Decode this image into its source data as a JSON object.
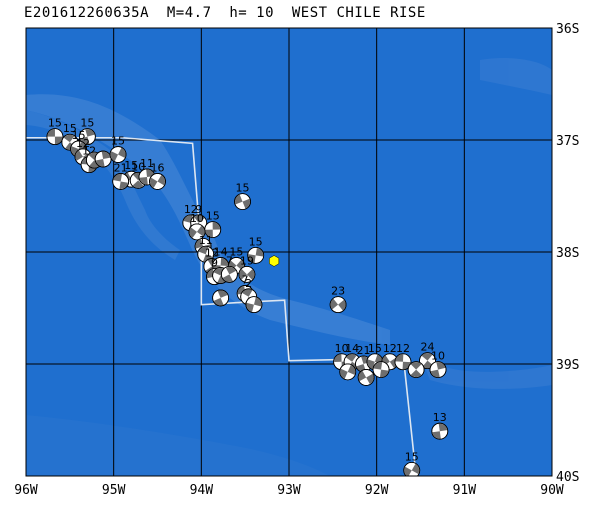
{
  "title": "E201612260635A  M=4.7  h= 10  WEST CHILE RISE",
  "map": {
    "lon_min": -96,
    "lon_max": -90,
    "lat_top": -36,
    "lat_bottom": -40,
    "ocean_color": "#1f6fcf",
    "grid_color": "#000000",
    "ridge_color": "#dce6f2",
    "lon_labels": [
      "96W",
      "95W",
      "94W",
      "93W",
      "92W",
      "91W",
      "90W"
    ],
    "lat_labels": [
      "36S",
      "37S",
      "38S",
      "39S",
      "40S"
    ]
  },
  "ridge": [
    [
      -96.0,
      -36.98
    ],
    [
      -94.9,
      -36.98
    ],
    [
      -94.1,
      -37.03
    ],
    [
      -94.0,
      -38.0
    ],
    [
      -94.0,
      -38.47
    ],
    [
      -93.55,
      -38.45
    ],
    [
      -93.05,
      -38.43
    ],
    [
      -93.0,
      -38.97
    ],
    [
      -91.8,
      -38.95
    ],
    [
      -91.68,
      -39.05
    ],
    [
      -91.55,
      -40.0
    ]
  ],
  "epicenter": {
    "lon": -93.17,
    "lat": -38.08,
    "color": "#ffff00"
  },
  "events": [
    {
      "lon": -95.67,
      "lat": -36.97,
      "label": "15"
    },
    {
      "lon": -95.5,
      "lat": -37.02,
      "label": "15"
    },
    {
      "lon": -95.3,
      "lat": -36.97,
      "label": "15"
    },
    {
      "lon": -95.4,
      "lat": -37.08,
      "label": "15"
    },
    {
      "lon": -95.35,
      "lat": -37.15,
      "label": "12"
    },
    {
      "lon": -95.28,
      "lat": -37.22,
      "label": "12"
    },
    {
      "lon": -95.22,
      "lat": -37.18,
      "label": ""
    },
    {
      "lon": -95.12,
      "lat": -37.17,
      "label": ""
    },
    {
      "lon": -94.95,
      "lat": -37.13,
      "label": "15"
    },
    {
      "lon": -94.8,
      "lat": -37.35,
      "label": "15"
    },
    {
      "lon": -94.92,
      "lat": -37.37,
      "label": "21"
    },
    {
      "lon": -94.72,
      "lat": -37.36,
      "label": "10"
    },
    {
      "lon": -94.62,
      "lat": -37.33,
      "label": "11"
    },
    {
      "lon": -94.5,
      "lat": -37.37,
      "label": "16"
    },
    {
      "lon": -93.53,
      "lat": -37.55,
      "label": "15"
    },
    {
      "lon": -94.12,
      "lat": -37.74,
      "label": "12"
    },
    {
      "lon": -94.03,
      "lat": -37.74,
      "label": "9"
    },
    {
      "lon": -93.87,
      "lat": -37.8,
      "label": "15"
    },
    {
      "lon": -94.05,
      "lat": -37.82,
      "label": "10"
    },
    {
      "lon": -93.98,
      "lat": -37.95,
      "label": ""
    },
    {
      "lon": -93.95,
      "lat": -38.02,
      "label": "11"
    },
    {
      "lon": -93.88,
      "lat": -38.13,
      "label": "12"
    },
    {
      "lon": -93.78,
      "lat": -38.12,
      "label": "14"
    },
    {
      "lon": -93.6,
      "lat": -38.12,
      "label": "15"
    },
    {
      "lon": -93.85,
      "lat": -38.22,
      "label": "9"
    },
    {
      "lon": -93.78,
      "lat": -38.21,
      "label": ""
    },
    {
      "lon": -93.68,
      "lat": -38.2,
      "label": "7"
    },
    {
      "lon": -93.38,
      "lat": -38.03,
      "label": "15"
    },
    {
      "lon": -93.48,
      "lat": -38.2,
      "label": "19"
    },
    {
      "lon": -93.5,
      "lat": -38.37,
      "label": "7"
    },
    {
      "lon": -93.46,
      "lat": -38.4,
      "label": "2"
    },
    {
      "lon": -93.78,
      "lat": -38.41,
      "label": ""
    },
    {
      "lon": -93.4,
      "lat": -38.47,
      "label": ""
    },
    {
      "lon": -92.44,
      "lat": -38.47,
      "label": "23"
    },
    {
      "lon": -92.4,
      "lat": -38.98,
      "label": "10"
    },
    {
      "lon": -92.28,
      "lat": -38.98,
      "label": "14"
    },
    {
      "lon": -92.15,
      "lat": -39.0,
      "label": "21"
    },
    {
      "lon": -92.02,
      "lat": -38.98,
      "label": "15"
    },
    {
      "lon": -91.85,
      "lat": -38.98,
      "label": "12"
    },
    {
      "lon": -91.7,
      "lat": -38.98,
      "label": "12"
    },
    {
      "lon": -91.42,
      "lat": -38.97,
      "label": "24"
    },
    {
      "lon": -91.3,
      "lat": -39.05,
      "label": "10"
    },
    {
      "lon": -92.33,
      "lat": -39.07,
      "label": ""
    },
    {
      "lon": -92.12,
      "lat": -39.12,
      "label": ""
    },
    {
      "lon": -91.95,
      "lat": -39.05,
      "label": ""
    },
    {
      "lon": -91.55,
      "lat": -39.05,
      "label": ""
    },
    {
      "lon": -91.28,
      "lat": -39.6,
      "label": "13"
    },
    {
      "lon": -91.6,
      "lat": -39.95,
      "label": "15"
    }
  ]
}
